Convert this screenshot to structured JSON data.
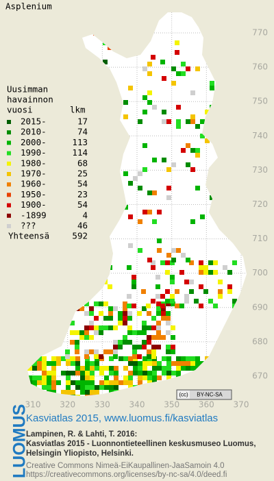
{
  "title": "Asplenium",
  "legend": {
    "heading": [
      "Uusimman",
      "havainnon",
      "vuosi"
    ],
    "count_heading": "lkm",
    "items": [
      {
        "label": "2015-",
        "count": 17,
        "color": "#005e00"
      },
      {
        "label": "2010-",
        "count": 74,
        "color": "#008c00"
      },
      {
        "label": "2000-",
        "count": 113,
        "color": "#00b400"
      },
      {
        "label": "1990-",
        "count": 114,
        "color": "#22dd22"
      },
      {
        "label": "1980-",
        "count": 68,
        "color": "#f4f400"
      },
      {
        "label": "1970-",
        "count": 25,
        "color": "#f4c400"
      },
      {
        "label": "1960-",
        "count": 54,
        "color": "#f08000"
      },
      {
        "label": "1950-",
        "count": 23,
        "color": "#e84000"
      },
      {
        "label": "1900-",
        "count": 54,
        "color": "#d40000"
      },
      {
        "label": "-1899",
        "count": 4,
        "color": "#8c0000"
      },
      {
        "label": "???",
        "count": 46,
        "color": "#cfcfcf"
      }
    ],
    "total_label": "Yhteensä",
    "total": 592
  },
  "map": {
    "xticks": [
      310,
      320,
      330,
      340,
      350,
      360,
      370
    ],
    "yticks": [
      670,
      680,
      690,
      700,
      710,
      720,
      730,
      740,
      750,
      760,
      770
    ]
  },
  "license_badge": "BY-NC-SA",
  "footer": {
    "logo": "LUOMUS",
    "headline": "Kasviatlas 2015, www.luomus.fi/kasviatlas",
    "citation": [
      "Lampinen, R. & Lahti, T. 2016:",
      "Kasviatlas 2015 - Luonnontieteellinen keskusmuseo Luomus,",
      "Helsingin Yliopisto, Helsinki."
    ],
    "license": [
      "Creative Commons Nimeä-EiKaupallinen-JaaSamoin 4.0",
      "https://creativecommons.org/licenses/by-nc-sa/4.0/deed.fi"
    ]
  }
}
